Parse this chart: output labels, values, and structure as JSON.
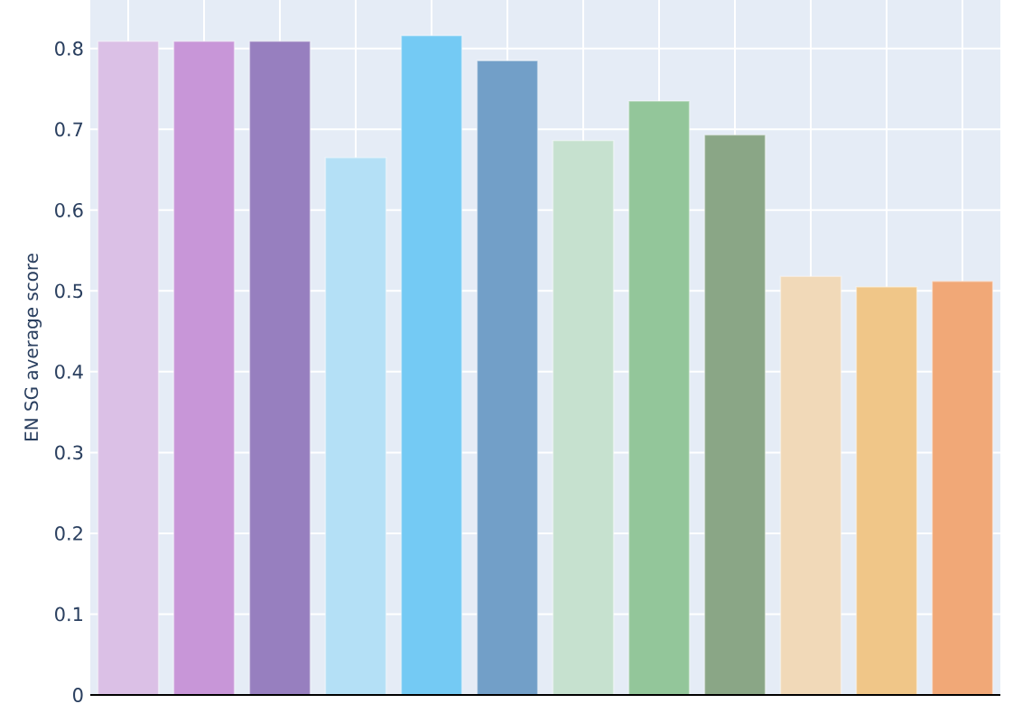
{
  "chart_data": {
    "type": "bar",
    "ylabel": "EN SG average score",
    "categories": [
      null,
      null,
      null,
      null,
      null,
      null,
      null,
      null,
      null,
      null,
      null,
      null
    ],
    "values": [
      0.809,
      0.809,
      0.809,
      0.665,
      0.816,
      0.785,
      0.686,
      0.735,
      0.693,
      0.518,
      0.505,
      0.512
    ],
    "colors": [
      "#dbc0e6",
      "#c896d8",
      "#977fbf",
      "#b4e0f6",
      "#74caf4",
      "#729fc8",
      "#c6e1cf",
      "#93c69a",
      "#8aa686",
      "#f1d9b8",
      "#f0c688",
      "#f1a877"
    ],
    "ylim": [
      0,
      0.86
    ],
    "yticks": [
      0,
      0.1,
      0.2,
      0.3,
      0.4,
      0.5,
      0.6,
      0.7,
      0.8
    ],
    "grid": true
  }
}
